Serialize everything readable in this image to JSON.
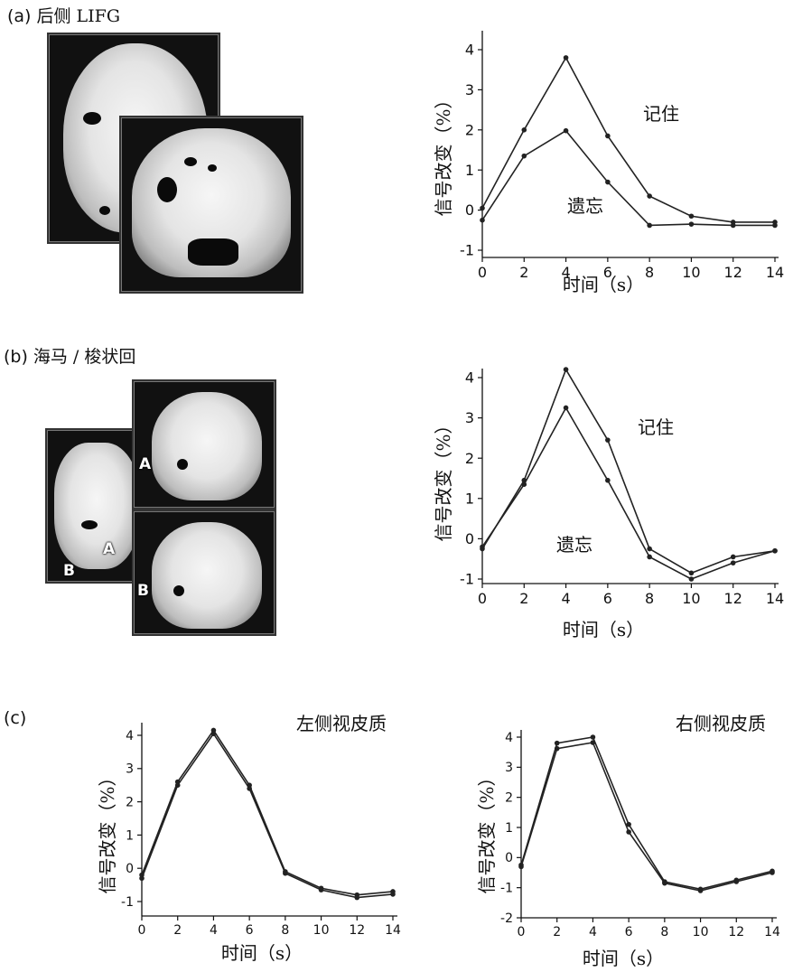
{
  "panels": {
    "a": {
      "label": "(a)",
      "title": "后侧 LIFG"
    },
    "b": {
      "label": "(b)",
      "title": "海马 / 梭状回"
    },
    "c": {
      "label": "(c)"
    }
  },
  "markers": {
    "a": "A",
    "b": "B"
  },
  "colors": {
    "line": "#222222",
    "axis": "#111111"
  },
  "chart_data": [
    {
      "id": "a",
      "type": "line",
      "x": [
        0,
        2,
        4,
        6,
        8,
        10,
        12,
        14
      ],
      "xlabel": "时间（s）",
      "ylabel": "信号改变（%）",
      "xlim": [
        0,
        14
      ],
      "ylim": [
        -1,
        4
      ],
      "xticks": [
        0,
        2,
        4,
        6,
        8,
        10,
        12,
        14
      ],
      "yticks": [
        -1,
        0,
        1,
        2,
        3,
        4
      ],
      "series": [
        {
          "name": "记住",
          "values": [
            0.05,
            2.0,
            3.8,
            1.85,
            0.35,
            -0.15,
            -0.3,
            -0.3
          ]
        },
        {
          "name": "遗忘",
          "values": [
            -0.25,
            1.35,
            1.98,
            0.7,
            -0.38,
            -0.35,
            -0.38,
            -0.38
          ]
        }
      ]
    },
    {
      "id": "b",
      "type": "line",
      "x": [
        0,
        2,
        4,
        6,
        8,
        10,
        12,
        14
      ],
      "xlabel": "时间（s）",
      "ylabel": "信号改变（%）",
      "xlim": [
        0,
        14
      ],
      "ylim": [
        -1,
        4
      ],
      "xticks": [
        0,
        2,
        4,
        6,
        8,
        10,
        12,
        14
      ],
      "yticks": [
        -1,
        0,
        1,
        2,
        3,
        4
      ],
      "series": [
        {
          "name": "记住",
          "values": [
            -0.25,
            1.45,
            4.2,
            2.45,
            -0.25,
            -0.85,
            -0.45,
            -0.3
          ]
        },
        {
          "name": "遗忘",
          "values": [
            -0.2,
            1.35,
            3.25,
            1.45,
            -0.45,
            -1.0,
            -0.6,
            -0.3
          ]
        }
      ]
    },
    {
      "id": "c1",
      "type": "line",
      "title": "左侧视皮质",
      "x": [
        0,
        2,
        4,
        6,
        8,
        10,
        12,
        14
      ],
      "xlabel": "时间（s）",
      "ylabel": "信号改变（%）",
      "xlim": [
        0,
        14
      ],
      "ylim": [
        -1,
        4
      ],
      "xticks": [
        0,
        2,
        4,
        6,
        8,
        10,
        12,
        14
      ],
      "yticks": [
        -1,
        0,
        1,
        2,
        3,
        4
      ],
      "series": [
        {
          "values": [
            -0.2,
            2.6,
            4.15,
            2.5,
            -0.1,
            -0.6,
            -0.8,
            -0.7
          ]
        },
        {
          "values": [
            -0.3,
            2.5,
            4.05,
            2.4,
            -0.15,
            -0.65,
            -0.88,
            -0.78
          ]
        }
      ]
    },
    {
      "id": "c2",
      "type": "line",
      "title": "右侧视皮质",
      "x": [
        0,
        2,
        4,
        6,
        8,
        10,
        12,
        14
      ],
      "xlabel": "时间（s）",
      "ylabel": "信号改变（%）",
      "xlim": [
        0,
        14
      ],
      "ylim": [
        -2,
        4
      ],
      "xticks": [
        0,
        2,
        4,
        6,
        8,
        10,
        12,
        14
      ],
      "yticks": [
        -2,
        -1,
        0,
        1,
        2,
        3,
        4
      ],
      "series": [
        {
          "values": [
            -0.25,
            3.8,
            4.0,
            1.1,
            -0.8,
            -1.05,
            -0.75,
            -0.45
          ]
        },
        {
          "values": [
            -0.3,
            3.62,
            3.82,
            0.85,
            -0.85,
            -1.1,
            -0.8,
            -0.5
          ]
        }
      ]
    }
  ]
}
